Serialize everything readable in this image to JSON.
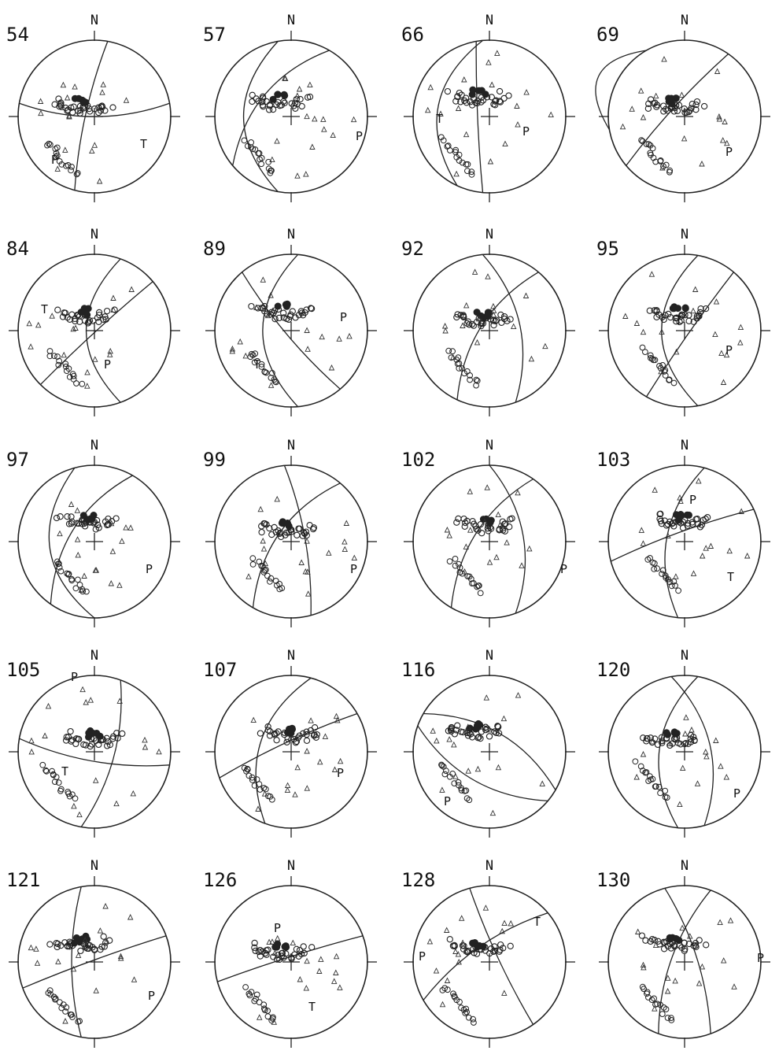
{
  "north_label": "N",
  "panels": [
    {
      "event": "54",
      "axis_labels": [
        {
          "text": "T"
        },
        {
          "text": "P"
        }
      ]
    },
    {
      "event": "57",
      "axis_labels": [
        {
          "text": "P"
        }
      ]
    },
    {
      "event": "66",
      "axis_labels": [
        {
          "text": "T"
        },
        {
          "text": "P"
        }
      ]
    },
    {
      "event": "69",
      "axis_labels": [
        {
          "text": "P"
        }
      ]
    },
    {
      "event": "84",
      "axis_labels": [
        {
          "text": "T"
        },
        {
          "text": "P"
        }
      ]
    },
    {
      "event": "89",
      "axis_labels": [
        {
          "text": "P"
        },
        {
          "text": "T"
        }
      ]
    },
    {
      "event": "92",
      "axis_labels": []
    },
    {
      "event": "95",
      "axis_labels": [
        {
          "text": "T"
        },
        {
          "text": "P"
        }
      ]
    },
    {
      "event": "97",
      "axis_labels": [
        {
          "text": "P"
        }
      ]
    },
    {
      "event": "99",
      "axis_labels": [
        {
          "text": "P"
        }
      ]
    },
    {
      "event": "102",
      "axis_labels": [
        {
          "text": "P"
        }
      ]
    },
    {
      "event": "103",
      "axis_labels": [
        {
          "text": "P"
        },
        {
          "text": "T"
        }
      ]
    },
    {
      "event": "105",
      "axis_labels": [
        {
          "text": "P"
        },
        {
          "text": "T"
        }
      ]
    },
    {
      "event": "107",
      "axis_labels": [
        {
          "text": "P"
        }
      ]
    },
    {
      "event": "116",
      "axis_labels": [
        {
          "text": "P"
        }
      ]
    },
    {
      "event": "120",
      "axis_labels": [
        {
          "text": "P"
        }
      ]
    },
    {
      "event": "121",
      "axis_labels": [
        {
          "text": "P"
        }
      ]
    },
    {
      "event": "126",
      "axis_labels": [
        {
          "text": "P"
        },
        {
          "text": "T"
        }
      ]
    },
    {
      "event": "128",
      "axis_labels": [
        {
          "text": "P"
        },
        {
          "text": "T"
        }
      ]
    },
    {
      "event": "130",
      "axis_labels": [
        {
          "text": "P"
        }
      ]
    }
  ]
}
